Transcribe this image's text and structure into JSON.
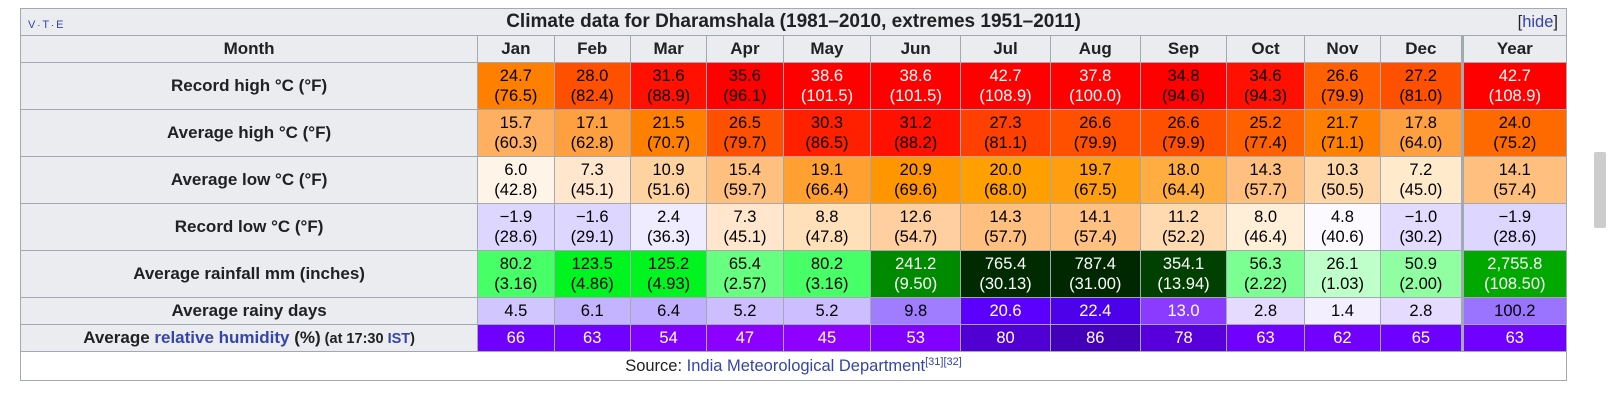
{
  "title": "Climate data for Dharamshala (1981–2010, extremes 1951–2011)",
  "vte": {
    "v": "V",
    "t": "T",
    "e": "E",
    "sep": "·"
  },
  "hide_label": "hide",
  "header": {
    "month_label": "Month",
    "months": [
      "Jan",
      "Feb",
      "Mar",
      "Apr",
      "May",
      "Jun",
      "Jul",
      "Aug",
      "Sep",
      "Oct",
      "Nov",
      "Dec"
    ],
    "year_label": "Year"
  },
  "rows": [
    {
      "label": "Record high °C (°F)",
      "c": [
        "24.7",
        "28.0",
        "31.6",
        "35.6",
        "38.6",
        "38.6",
        "42.7",
        "37.8",
        "34.8",
        "34.6",
        "26.6",
        "27.2",
        "42.7"
      ],
      "f": [
        "(76.5)",
        "(82.4)",
        "(88.9)",
        "(96.1)",
        "(101.5)",
        "(101.5)",
        "(108.9)",
        "(100.0)",
        "(94.6)",
        "(94.3)",
        "(79.9)",
        "(81.0)",
        "(108.9)"
      ],
      "bg": [
        "#ff8000",
        "#ff5000",
        "#ff1000",
        "#ff0000",
        "#ff0000",
        "#ff0000",
        "#ff0000",
        "#ff0000",
        "#ff0000",
        "#ff1000",
        "#ff6000",
        "#ff5000",
        "#ff0000"
      ],
      "fg": [
        "#000000",
        "#000000",
        "#000000",
        "#000000",
        "#ffffff",
        "#ffffff",
        "#ffffff",
        "#ffffff",
        "#000000",
        "#000000",
        "#000000",
        "#000000",
        "#ffffff"
      ]
    },
    {
      "label": "Average high °C (°F)",
      "c": [
        "15.7",
        "17.1",
        "21.5",
        "26.5",
        "30.3",
        "31.2",
        "27.3",
        "26.6",
        "26.6",
        "25.2",
        "21.7",
        "17.8",
        "24.0"
      ],
      "f": [
        "(60.3)",
        "(62.8)",
        "(70.7)",
        "(79.7)",
        "(86.5)",
        "(88.2)",
        "(81.1)",
        "(79.9)",
        "(79.9)",
        "(77.4)",
        "(71.1)",
        "(64.0)",
        "(75.2)"
      ],
      "bg": [
        "#ffaf60",
        "#ffa040",
        "#ff8000",
        "#ff5000",
        "#ff2000",
        "#ff1000",
        "#ff4000",
        "#ff5000",
        "#ff5000",
        "#ff6000",
        "#ff8000",
        "#ffa040",
        "#ff6a00"
      ],
      "fg": [
        "#000000",
        "#000000",
        "#000000",
        "#000000",
        "#000000",
        "#000000",
        "#000000",
        "#000000",
        "#000000",
        "#000000",
        "#000000",
        "#000000",
        "#000000"
      ]
    },
    {
      "label": "Average low °C (°F)",
      "c": [
        "6.0",
        "7.3",
        "10.9",
        "15.4",
        "19.1",
        "20.9",
        "20.0",
        "19.7",
        "18.0",
        "14.3",
        "10.3",
        "7.2",
        "14.1"
      ],
      "f": [
        "(42.8)",
        "(45.1)",
        "(51.6)",
        "(59.7)",
        "(66.4)",
        "(69.6)",
        "(68.0)",
        "(67.5)",
        "(64.4)",
        "(57.7)",
        "(50.5)",
        "(45.0)",
        "(57.4)"
      ],
      "bg": [
        "#fff4e8",
        "#ffe6cc",
        "#ffd39f",
        "#ffbf7f",
        "#ffa030",
        "#ff9600",
        "#ff9f00",
        "#ff9f10",
        "#ffad40",
        "#ffbf7f",
        "#ffd6a8",
        "#ffeacc",
        "#ffbf7f"
      ],
      "fg": [
        "#000000",
        "#000000",
        "#000000",
        "#000000",
        "#000000",
        "#000000",
        "#000000",
        "#000000",
        "#000000",
        "#000000",
        "#000000",
        "#000000",
        "#000000"
      ]
    },
    {
      "label": "Record low °C (°F)",
      "c": [
        "−1.9",
        "−1.6",
        "2.4",
        "7.3",
        "8.8",
        "12.6",
        "14.3",
        "14.1",
        "11.2",
        "8.0",
        "4.8",
        "−1.0",
        "−1.9"
      ],
      "f": [
        "(28.6)",
        "(29.1)",
        "(36.3)",
        "(45.1)",
        "(47.8)",
        "(54.7)",
        "(57.7)",
        "(57.4)",
        "(52.2)",
        "(46.4)",
        "(40.6)",
        "(30.2)",
        "(28.6)"
      ],
      "bg": [
        "#ddd6ff",
        "#ddd6ff",
        "#f0ecff",
        "#ffe6cc",
        "#ffe0b8",
        "#ffcf9f",
        "#ffbf7f",
        "#ffc080",
        "#ffd9b0",
        "#ffeed8",
        "#fcfaff",
        "#e3dcff",
        "#ddd6ff"
      ],
      "fg": [
        "#000000",
        "#000000",
        "#000000",
        "#000000",
        "#000000",
        "#000000",
        "#000000",
        "#000000",
        "#000000",
        "#000000",
        "#000000",
        "#000000",
        "#000000"
      ]
    },
    {
      "label": "Average rainfall mm (inches)",
      "c": [
        "80.2",
        "123.5",
        "125.2",
        "65.4",
        "80.2",
        "241.2",
        "765.4",
        "787.4",
        "354.1",
        "56.3",
        "26.1",
        "50.9",
        "2,755.8"
      ],
      "f": [
        "(3.16)",
        "(4.86)",
        "(4.93)",
        "(2.57)",
        "(3.16)",
        "(9.50)",
        "(30.13)",
        "(31.00)",
        "(13.94)",
        "(2.22)",
        "(1.03)",
        "(2.00)",
        "(108.50)"
      ],
      "bg": [
        "#47ff66",
        "#00f520",
        "#00f520",
        "#66ff80",
        "#47ff66",
        "#008a00",
        "#002b00",
        "#002800",
        "#004000",
        "#7cff92",
        "#bfffca",
        "#8fffa2",
        "#00a800"
      ],
      "fg": [
        "#000000",
        "#000000",
        "#000000",
        "#000000",
        "#000000",
        "#ffffff",
        "#ffffff",
        "#ffffff",
        "#ffffff",
        "#000000",
        "#000000",
        "#000000",
        "#ffffff"
      ]
    },
    {
      "label": "Average rainy days",
      "c": [
        "4.5",
        "6.1",
        "6.4",
        "5.2",
        "5.2",
        "9.8",
        "20.6",
        "22.4",
        "13.0",
        "2.8",
        "1.4",
        "2.8",
        "100.2"
      ],
      "bg": [
        "#d2c6ff",
        "#c4b3ff",
        "#c0afff",
        "#cdbfff",
        "#cdbfff",
        "#a07cff",
        "#5b00ff",
        "#4d00ea",
        "#8a3bff",
        "#e4dbff",
        "#f3efff",
        "#e4dbff",
        "#9a73ff"
      ],
      "fg": [
        "#000000",
        "#000000",
        "#000000",
        "#000000",
        "#000000",
        "#000000",
        "#ffffff",
        "#ffffff",
        "#ffffff",
        "#000000",
        "#000000",
        "#000000",
        "#000000"
      ]
    },
    {
      "label_pre": "Average ",
      "label_link": "relative humidity",
      "label_post": " (%)",
      "label_small": " (at 17:30 ",
      "label_small_link": "IST",
      "label_small_end": ")",
      "c": [
        "66",
        "63",
        "54",
        "47",
        "45",
        "53",
        "80",
        "86",
        "78",
        "63",
        "62",
        "65",
        "63"
      ],
      "bg": [
        "#6f00ff",
        "#7000ff",
        "#8000ff",
        "#8c00ff",
        "#8e00ff",
        "#8100ff",
        "#5000d2",
        "#4400b8",
        "#5800dc",
        "#7000ff",
        "#7200ff",
        "#6e00ff",
        "#7000ff"
      ],
      "fg": [
        "#ffffff",
        "#ffffff",
        "#ffffff",
        "#ffffff",
        "#ffffff",
        "#ffffff",
        "#ffffff",
        "#ffffff",
        "#ffffff",
        "#ffffff",
        "#ffffff",
        "#ffffff",
        "#ffffff"
      ]
    }
  ],
  "source": {
    "label": "Source: ",
    "link": "India Meteorological Department",
    "refs": "[31][32]"
  }
}
